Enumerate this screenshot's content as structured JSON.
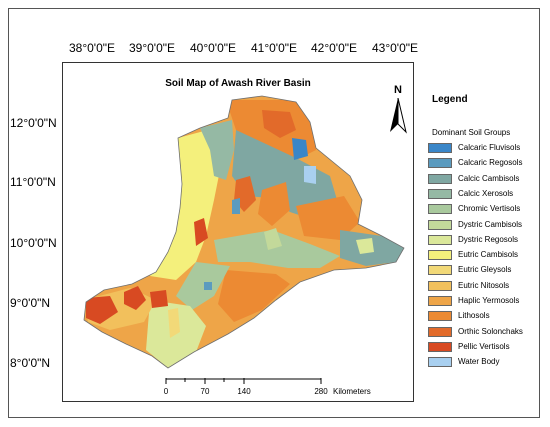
{
  "title": "Soil Map of Awash River Basin",
  "longitude_ticks": [
    "38°0'0\"E",
    "39°0'0\"E",
    "40°0'0\"E",
    "41°0'0\"E",
    "42°0'0\"E",
    "43°0'0\"E"
  ],
  "latitude_ticks": [
    "12°0'0\"N",
    "11°0'0\"N",
    "10°0'0\"N",
    "9°0'0\"N",
    "8°0'0\"N"
  ],
  "north_arrow": "N",
  "legend": {
    "title": "Legend",
    "subtitle": "Dominant Soil Groups",
    "items": [
      {
        "label": "Calcaric Fluvisols",
        "color": "#3a86c8"
      },
      {
        "label": "Calcaric Regosols",
        "color": "#5b9bbf"
      },
      {
        "label": "Calcic Cambisols",
        "color": "#7fa7a2"
      },
      {
        "label": "Calcic Xerosols",
        "color": "#95b9a4"
      },
      {
        "label": "Chromic Vertisols",
        "color": "#a9c99d"
      },
      {
        "label": "Dystric Cambisols",
        "color": "#c3d99a"
      },
      {
        "label": "Dystric Regosols",
        "color": "#dbe89a"
      },
      {
        "label": "Eutric Cambisols",
        "color": "#f4f07c"
      },
      {
        "label": "Eutric Gleysols",
        "color": "#f2d978"
      },
      {
        "label": "Eutric Nitosols",
        "color": "#f2c05c"
      },
      {
        "label": "Haplic Yermosols",
        "color": "#eea548"
      },
      {
        "label": "Lithosols",
        "color": "#ec8a33"
      },
      {
        "label": "Orthic Solonchaks",
        "color": "#e26a2a"
      },
      {
        "label": "Pellic Vertisols",
        "color": "#d84a22"
      },
      {
        "label": "Water Body",
        "color": "#a9d0f0"
      }
    ]
  },
  "scale_bar": {
    "labels": [
      "0",
      "70",
      "140",
      "280"
    ],
    "unit": "Kilometers"
  }
}
